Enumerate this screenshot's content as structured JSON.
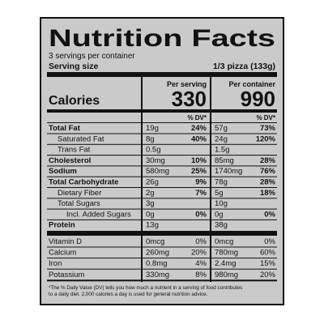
{
  "label": {
    "title": "Nutrition Facts",
    "servings": "3 servings per container",
    "serving_size_label": "Serving size",
    "serving_size": "1/3 pizza (133g)",
    "columns": [
      "Per serving",
      "Per container"
    ],
    "calories_label": "Calories",
    "calories": [
      "330",
      "990"
    ],
    "dv_header": "% DV*",
    "nutrients": [
      {
        "name": "Total Fat",
        "bold": true,
        "indent": 0,
        "serving": {
          "amount": "19g",
          "dv": "24%"
        },
        "container": {
          "amount": "57g",
          "dv": "73%"
        }
      },
      {
        "name": "Saturated Fat",
        "bold": false,
        "indent": 1,
        "serving": {
          "amount": "8g",
          "dv": "40%"
        },
        "container": {
          "amount": "24g",
          "dv": "120%"
        }
      },
      {
        "name": "Trans Fat",
        "bold": false,
        "indent": 1,
        "serving": {
          "amount": "0.5g"
        },
        "container": {
          "amount": "1.5g"
        }
      },
      {
        "name": "Cholesterol",
        "bold": true,
        "indent": 0,
        "serving": {
          "amount": "30mg",
          "dv": "10%"
        },
        "container": {
          "amount": "85mg",
          "dv": "28%"
        }
      },
      {
        "name": "Sodium",
        "bold": true,
        "indent": 0,
        "serving": {
          "amount": "580mg",
          "dv": "25%"
        },
        "container": {
          "amount": "1740mg",
          "dv": "76%"
        }
      },
      {
        "name": "Total Carbohydrate",
        "bold": true,
        "indent": 0,
        "serving": {
          "amount": "26g",
          "dv": "9%"
        },
        "container": {
          "amount": "78g",
          "dv": "28%"
        }
      },
      {
        "name": "Dietary Fiber",
        "bold": false,
        "indent": 1,
        "serving": {
          "amount": "2g",
          "dv": "7%"
        },
        "container": {
          "amount": "5g",
          "dv": "18%"
        }
      },
      {
        "name": "Total Sugars",
        "bold": false,
        "indent": 1,
        "serving": {
          "amount": "3g"
        },
        "container": {
          "amount": "10g"
        }
      },
      {
        "name": "Incl. Added Sugars",
        "bold": false,
        "indent": 2,
        "serving": {
          "amount": "0g",
          "dv": "0%"
        },
        "container": {
          "amount": "0g",
          "dv": "0%"
        }
      },
      {
        "name": "Protein",
        "bold": true,
        "indent": 0,
        "serving": {
          "amount": "13g"
        },
        "container": {
          "amount": "38g"
        }
      }
    ],
    "vitamins": [
      {
        "name": "Vitamin D",
        "serving": {
          "amount": "0mcg",
          "dv": "0%"
        },
        "container": {
          "amount": "0mcg",
          "dv": "0%"
        }
      },
      {
        "name": "Calcium",
        "serving": {
          "amount": "260mg",
          "dv": "20%"
        },
        "container": {
          "amount": "780mg",
          "dv": "60%"
        }
      },
      {
        "name": "Iron",
        "serving": {
          "amount": "0.8mg",
          "dv": "4%"
        },
        "container": {
          "amount": "2.4mg",
          "dv": "15%"
        }
      },
      {
        "name": "Potassium",
        "serving": {
          "amount": "330mg",
          "dv": "8%"
        },
        "container": {
          "amount": "980mg",
          "dv": "20%"
        }
      }
    ],
    "footnote": [
      "*The % Daily Value (DV) tells you how much a nutrient in a serving of food contributes",
      "to a daily diet. 2,000 calories a day is used for general nutrition advice."
    ]
  }
}
